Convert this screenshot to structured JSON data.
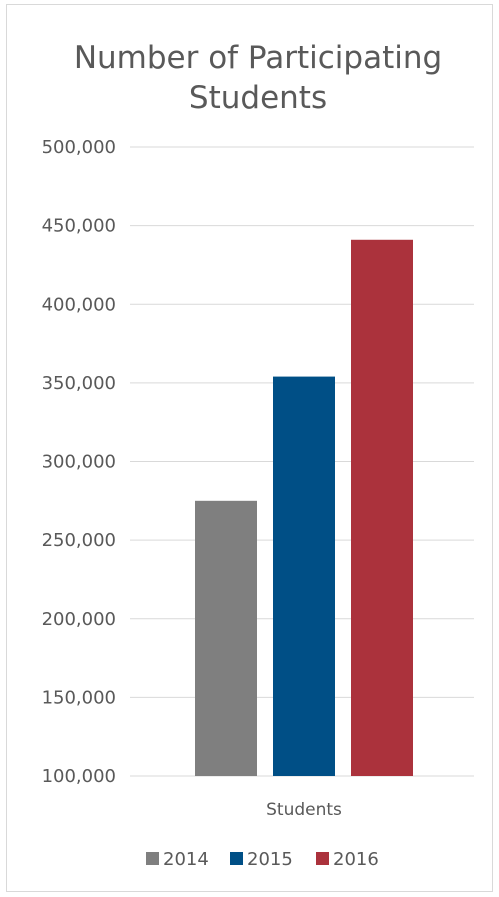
{
  "chart_data": {
    "type": "bar",
    "title": [
      "Number of Participating",
      "Students"
    ],
    "categories": [
      "Students"
    ],
    "series": [
      {
        "name": "2014",
        "values": [
          275000
        ],
        "color": "#7f7f7f"
      },
      {
        "name": "2015",
        "values": [
          354000
        ],
        "color": "#004f86"
      },
      {
        "name": "2016",
        "values": [
          441000
        ],
        "color": "#ab323c"
      }
    ],
    "ylim": [
      100000,
      500000
    ],
    "yticks": [
      "100,000",
      "150,000",
      "200,000",
      "250,000",
      "300,000",
      "350,000",
      "400,000",
      "450,000",
      "500,000"
    ],
    "ytick_values": [
      100000,
      150000,
      200000,
      250000,
      300000,
      350000,
      400000,
      450000,
      500000
    ],
    "grid": true,
    "legend": "bottom",
    "colors": {
      "grid": "#d9d9d9",
      "text": "#595959"
    }
  }
}
